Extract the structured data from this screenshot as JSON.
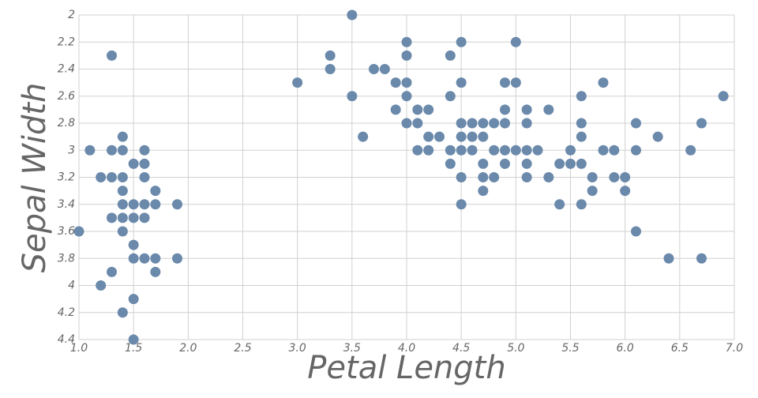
{
  "chart_data": {
    "type": "scatter",
    "x_label": "Petal Length",
    "y_label": "Sepal Width",
    "color": "#6a89ab",
    "grid": true,
    "xlim": [
      1,
      7
    ],
    "ylim": [
      4.4,
      2
    ],
    "xticks": [
      {
        "value": 1,
        "label": "1.0"
      },
      1.5,
      {
        "value": 2,
        "label": "2.0"
      },
      2.5,
      {
        "value": 3,
        "label": "3.0"
      },
      3.5,
      {
        "value": 4,
        "label": "4.0"
      },
      4.5,
      {
        "value": 5,
        "label": "5.0"
      },
      5.5,
      {
        "value": 6,
        "label": "6.0"
      },
      6.5,
      {
        "value": 7,
        "label": "7.0"
      }
    ],
    "yticks": [
      2,
      2.2,
      2.4,
      2.6,
      2.8,
      3,
      3.2,
      3.4,
      3.6,
      3.8,
      4,
      4.2,
      4.4
    ],
    "x": [
      1.0,
      1.1,
      1.2,
      1.2,
      1.3,
      1.3,
      1.3,
      1.3,
      1.3,
      1.4,
      1.4,
      1.4,
      1.4,
      1.4,
      1.4,
      1.4,
      1.4,
      1.5,
      1.5,
      1.5,
      1.5,
      1.5,
      1.5,
      1.5,
      1.6,
      1.6,
      1.6,
      1.6,
      1.6,
      1.6,
      1.7,
      1.7,
      1.7,
      1.7,
      1.9,
      1.9,
      3.0,
      3.3,
      3.3,
      3.5,
      3.5,
      3.6,
      3.7,
      3.8,
      3.9,
      3.9,
      4.0,
      4.0,
      4.0,
      4.0,
      4.0,
      4.1,
      4.1,
      4.1,
      4.2,
      4.2,
      4.2,
      4.3,
      4.4,
      4.4,
      4.4,
      4.4,
      4.5,
      4.5,
      4.5,
      4.5,
      4.5,
      4.5,
      4.5,
      4.6,
      4.6,
      4.6,
      4.7,
      4.7,
      4.7,
      4.7,
      4.7,
      4.8,
      4.8,
      4.8,
      4.9,
      4.9,
      4.9,
      4.9,
      4.9,
      5.0,
      5.0,
      5.0,
      5.1,
      5.1,
      5.1,
      5.1,
      5.1,
      5.2,
      5.3,
      5.3,
      5.4,
      5.4,
      5.5,
      5.5,
      5.6,
      5.6,
      5.6,
      5.6,
      5.6,
      5.7,
      5.7,
      5.8,
      5.8,
      5.9,
      5.9,
      6.0,
      6.0,
      6.1,
      6.1,
      6.1,
      6.3,
      6.4,
      6.6,
      6.7,
      6.7,
      6.9
    ],
    "values": [
      3.6,
      3.0,
      3.2,
      4.0,
      2.3,
      3.0,
      3.2,
      3.5,
      3.9,
      2.9,
      3.0,
      3.2,
      3.3,
      3.4,
      3.5,
      3.6,
      4.2,
      3.1,
      3.4,
      3.5,
      3.7,
      3.8,
      4.1,
      4.4,
      3.0,
      3.1,
      3.2,
      3.4,
      3.5,
      3.8,
      3.3,
      3.4,
      3.8,
      3.9,
      3.4,
      3.8,
      2.5,
      2.3,
      2.4,
      2.0,
      2.6,
      2.9,
      2.4,
      2.4,
      2.5,
      2.7,
      2.2,
      2.3,
      2.5,
      2.6,
      2.8,
      2.7,
      2.8,
      3.0,
      2.7,
      2.9,
      3.0,
      2.9,
      2.3,
      2.6,
      3.0,
      3.1,
      2.2,
      2.5,
      2.8,
      2.9,
      3.0,
      3.2,
      3.4,
      2.8,
      2.9,
      3.0,
      2.8,
      2.9,
      3.1,
      3.2,
      3.3,
      2.8,
      3.0,
      3.2,
      2.5,
      2.7,
      2.8,
      3.0,
      3.1,
      2.2,
      2.5,
      3.0,
      2.7,
      2.8,
      3.0,
      3.1,
      3.2,
      3.0,
      2.7,
      3.2,
      3.1,
      3.4,
      3.0,
      3.1,
      2.6,
      2.8,
      2.9,
      3.1,
      3.4,
      3.2,
      3.3,
      2.5,
      3.0,
      3.0,
      3.2,
      3.2,
      3.3,
      2.8,
      3.0,
      3.6,
      2.9,
      3.8,
      3.0,
      2.8,
      3.8,
      2.6
    ]
  }
}
